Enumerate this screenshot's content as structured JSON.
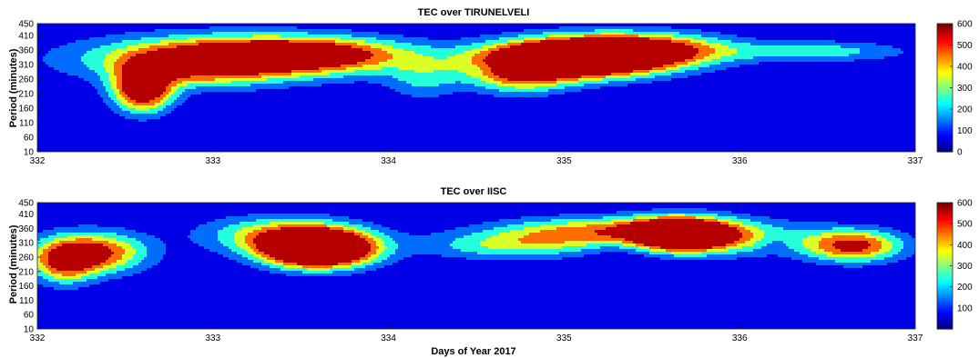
{
  "chart_data": [
    {
      "type": "heatmap",
      "subtype": "filled-contour",
      "title": "TEC over TIRUNELVELI",
      "xlabel": "",
      "ylabel": "Period (minutes)",
      "xlim": [
        332,
        337
      ],
      "ylim": [
        10,
        450
      ],
      "xticks": [
        332,
        333,
        334,
        335,
        336,
        337
      ],
      "yticks": [
        10,
        60,
        110,
        160,
        210,
        260,
        310,
        360,
        410,
        450
      ],
      "colormap": "jet",
      "clim": [
        0,
        600
      ],
      "colorbar_ticks": [
        0,
        100,
        200,
        300,
        400,
        500,
        600
      ],
      "contour_levels": [
        100,
        200,
        300,
        400,
        500
      ],
      "features": [
        {
          "day": 333.05,
          "period": 330,
          "sx": 0.55,
          "sy": 55,
          "peak": 300
        },
        {
          "day": 332.6,
          "period": 225,
          "sx": 0.12,
          "sy": 55,
          "peak": 380
        },
        {
          "day": 332.95,
          "period": 300,
          "sx": 0.25,
          "sy": 45,
          "peak": 130
        },
        {
          "day": 333.55,
          "period": 345,
          "sx": 0.4,
          "sy": 40,
          "peak": 270
        },
        {
          "day": 334.55,
          "period": 300,
          "sx": 0.05,
          "sy": 15,
          "peak": -40
        },
        {
          "day": 335.05,
          "period": 330,
          "sx": 0.35,
          "sy": 45,
          "peak": 580
        },
        {
          "day": 335.45,
          "period": 360,
          "sx": 0.35,
          "sy": 40,
          "peak": 300
        },
        {
          "day": 334.75,
          "period": 270,
          "sx": 0.2,
          "sy": 45,
          "peak": 200
        },
        {
          "day": 336.45,
          "period": 355,
          "sx": 0.35,
          "sy": 25,
          "peak": 140
        },
        {
          "day": 334.2,
          "period": 260,
          "sx": 0.15,
          "sy": 50,
          "peak": 110
        }
      ]
    },
    {
      "type": "heatmap",
      "subtype": "filled-contour",
      "title": "TEC over IISC",
      "xlabel": "Days of Year 2017",
      "ylabel": "Period (minutes)",
      "xlim": [
        332,
        337
      ],
      "ylim": [
        10,
        450
      ],
      "xticks": [
        332,
        333,
        334,
        335,
        336,
        337
      ],
      "yticks": [
        10,
        60,
        110,
        160,
        210,
        260,
        310,
        360,
        410,
        450
      ],
      "colormap": "jet",
      "clim": [
        0,
        600
      ],
      "colorbar_ticks": [
        100,
        200,
        300,
        400,
        500,
        600
      ],
      "contour_levels": [
        100,
        200,
        300,
        400,
        500
      ],
      "features": [
        {
          "day": 332.3,
          "period": 275,
          "sx": 0.22,
          "sy": 50,
          "peak": 320
        },
        {
          "day": 332.15,
          "period": 230,
          "sx": 0.12,
          "sy": 50,
          "peak": 180
        },
        {
          "day": 333.6,
          "period": 290,
          "sx": 0.22,
          "sy": 45,
          "peak": 620
        },
        {
          "day": 333.35,
          "period": 340,
          "sx": 0.3,
          "sy": 45,
          "peak": 180
        },
        {
          "day": 334.7,
          "period": 300,
          "sx": 0.35,
          "sy": 35,
          "peak": 160
        },
        {
          "day": 335.2,
          "period": 350,
          "sx": 0.4,
          "sy": 35,
          "peak": 240
        },
        {
          "day": 335.65,
          "period": 340,
          "sx": 0.2,
          "sy": 40,
          "peak": 480
        },
        {
          "day": 335.35,
          "period": 310,
          "sx": 0.15,
          "sy": 40,
          "peak": -60
        },
        {
          "day": 336.0,
          "period": 330,
          "sx": 0.3,
          "sy": 45,
          "peak": 160
        },
        {
          "day": 336.65,
          "period": 300,
          "sx": 0.2,
          "sy": 40,
          "peak": 300
        },
        {
          "day": 336.2,
          "period": 310,
          "sx": 0.08,
          "sy": 25,
          "peak": -50
        }
      ]
    }
  ]
}
